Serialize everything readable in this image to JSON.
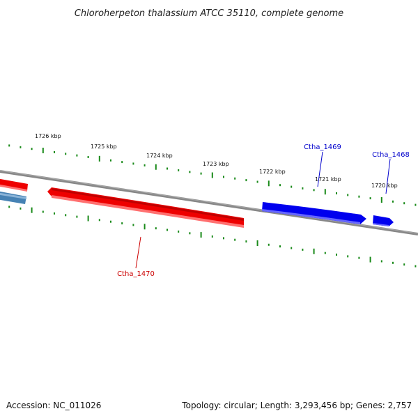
{
  "title": "Chloroherpeton thalassium ATCC 35110, complete genome",
  "footer": {
    "accession": "Accession: NC_011026",
    "summary": "Topology: circular; Length: 3,293,456 bp; Genes: 2,757"
  },
  "scale_labels": [
    {
      "text": "1726 kbp"
    },
    {
      "text": "1725 kbp"
    },
    {
      "text": "1724 kbp"
    },
    {
      "text": "1723 kbp"
    },
    {
      "text": "1722 kbp"
    },
    {
      "text": "1721 kbp"
    },
    {
      "text": "1720 kbp"
    }
  ],
  "genes": [
    {
      "name": "Ctha_1470",
      "strand": "minus"
    },
    {
      "name": "Ctha_1469",
      "strand": "plus"
    },
    {
      "name": "Ctha_1468",
      "strand": "plus"
    }
  ],
  "colors": {
    "backbone": "#808080",
    "tick": "#1a8a1a",
    "minus_strand_gene": "#ee0000",
    "plus_strand_gene": "#0000ee",
    "other_feature": "#4682b4",
    "minus_label": "#cc0000",
    "plus_label": "#0000cc"
  }
}
